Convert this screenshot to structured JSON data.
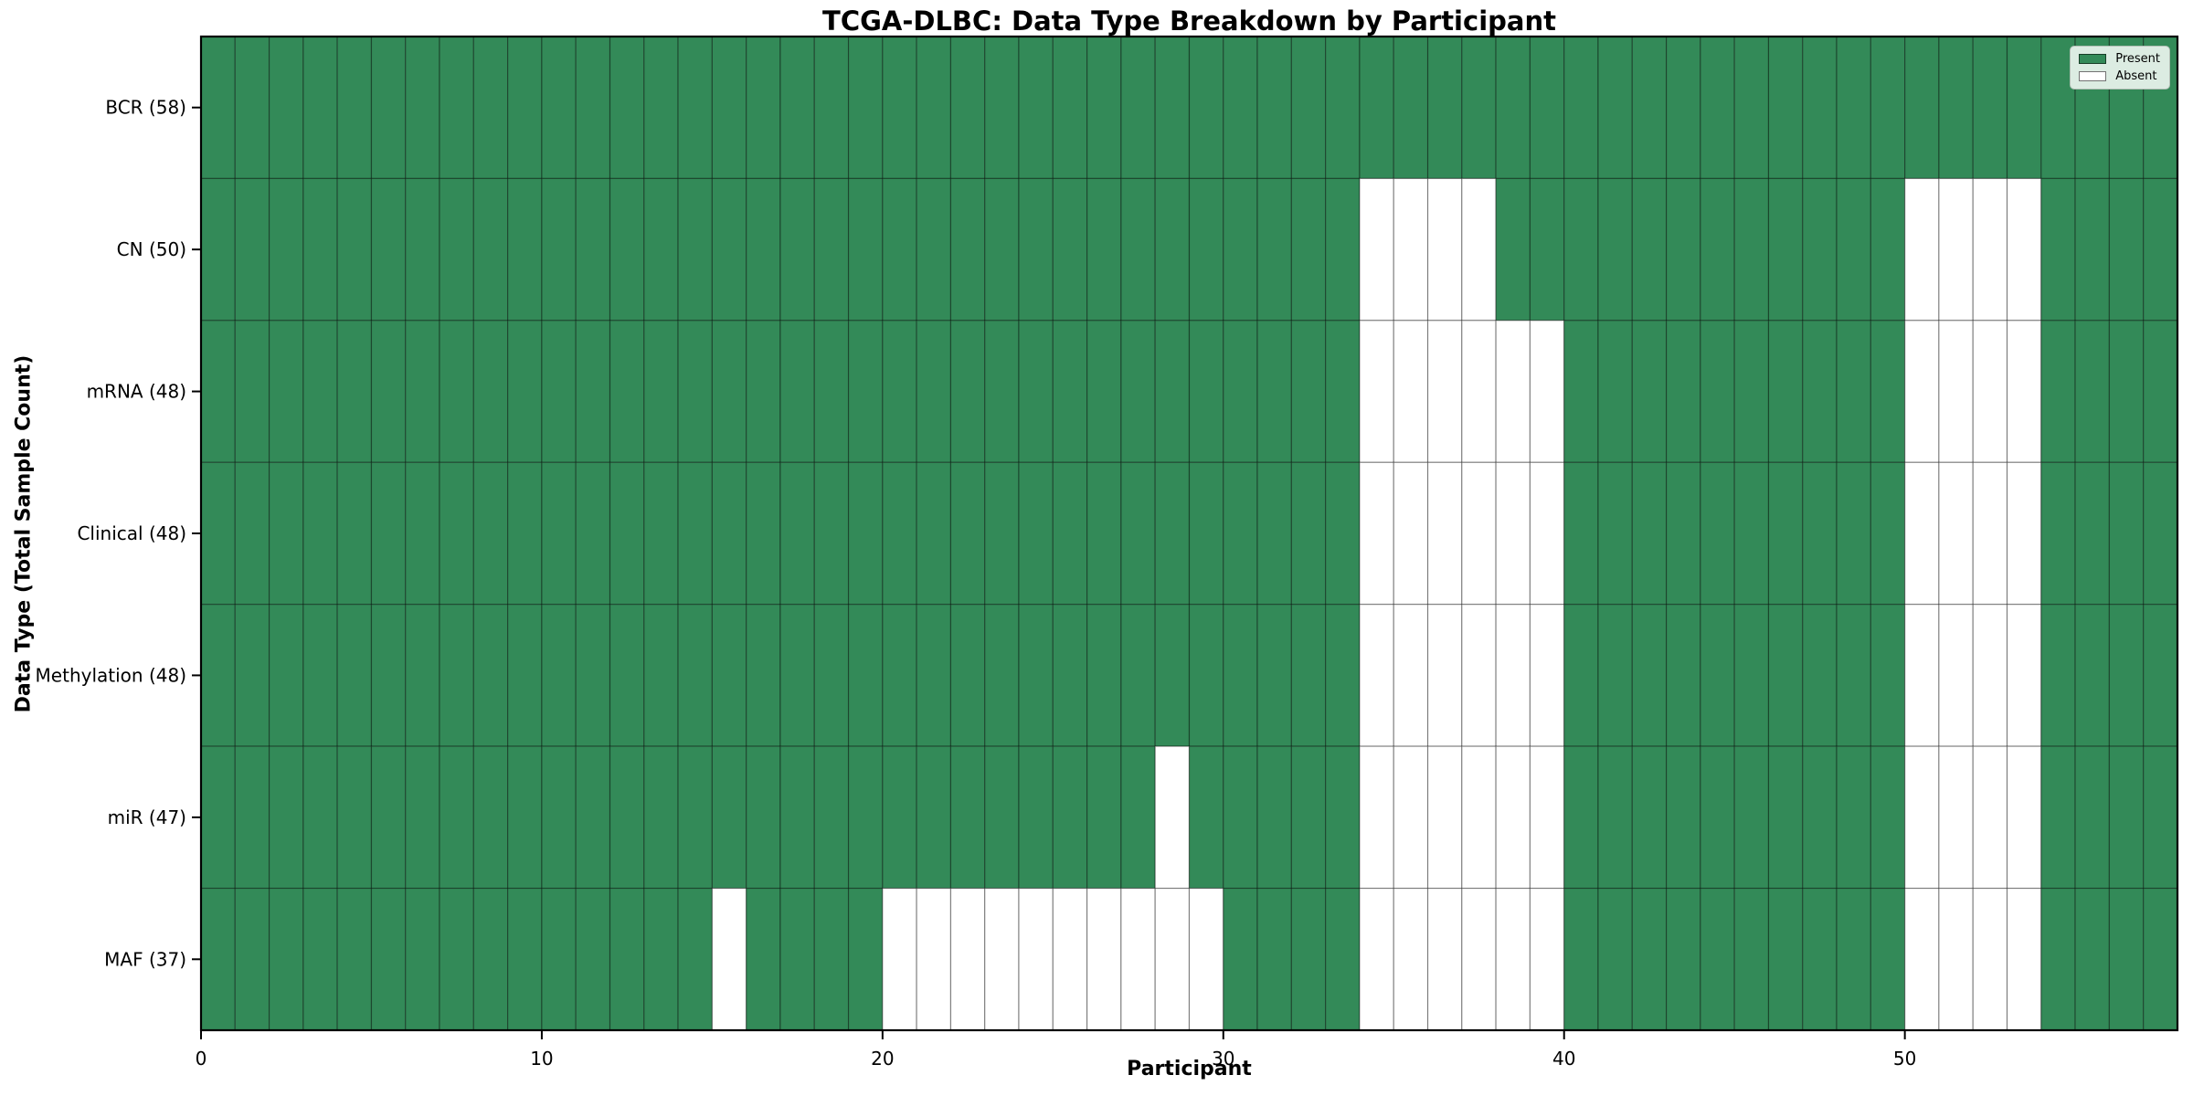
{
  "chart_data": {
    "type": "heatmap",
    "title": "TCGA-DLBC: Data Type Breakdown by Participant",
    "xlabel": "Participant",
    "ylabel": "Data Type (Total Sample Count)",
    "n_columns": 58,
    "x_ticks": [
      0,
      10,
      20,
      30,
      40,
      50
    ],
    "grid": true,
    "legend_position": "upper right",
    "rows": [
      {
        "name": "bcr",
        "label": "BCR (58)",
        "total": 58,
        "absent": []
      },
      {
        "name": "cn",
        "label": "CN (50)",
        "total": 50,
        "absent": [
          34,
          35,
          36,
          37,
          50,
          51,
          52,
          53
        ]
      },
      {
        "name": "mrna",
        "label": "mRNA (48)",
        "total": 48,
        "absent": [
          34,
          35,
          36,
          37,
          38,
          39,
          50,
          51,
          52,
          53
        ]
      },
      {
        "name": "clinical",
        "label": "Clinical (48)",
        "total": 48,
        "absent": [
          34,
          35,
          36,
          37,
          38,
          39,
          50,
          51,
          52,
          53
        ]
      },
      {
        "name": "methylation",
        "label": "Methylation (48)",
        "total": 48,
        "absent": [
          34,
          35,
          36,
          37,
          38,
          39,
          50,
          51,
          52,
          53
        ]
      },
      {
        "name": "mir",
        "label": "miR (47)",
        "total": 47,
        "absent": [
          28,
          34,
          35,
          36,
          37,
          38,
          39,
          50,
          51,
          52,
          53
        ]
      },
      {
        "name": "maf",
        "label": "MAF (37)",
        "total": 37,
        "absent": [
          15,
          20,
          21,
          22,
          23,
          24,
          25,
          26,
          27,
          28,
          29,
          34,
          35,
          36,
          37,
          38,
          39,
          50,
          51,
          52,
          53
        ]
      }
    ],
    "legend": [
      {
        "label": "Present",
        "color": "#338a58"
      },
      {
        "label": "Absent",
        "color": "#ffffff"
      }
    ],
    "colors": {
      "present": "#338a58",
      "absent": "#ffffff",
      "grid_line": "rgba(0,0,0,0.38)",
      "spine": "#000000",
      "tick_label": "#000000"
    }
  }
}
